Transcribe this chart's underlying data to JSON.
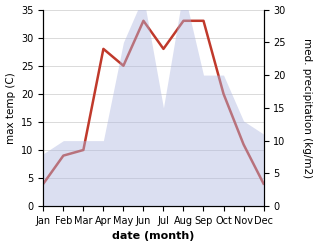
{
  "months": [
    "Jan",
    "Feb",
    "Mar",
    "Apr",
    "May",
    "Jun",
    "Jul",
    "Aug",
    "Sep",
    "Oct",
    "Nov",
    "Dec"
  ],
  "temperature": [
    4,
    9,
    10,
    28,
    25,
    33,
    28,
    33,
    33,
    20,
    11,
    4
  ],
  "precipitation": [
    8,
    10,
    10,
    10,
    25,
    32,
    15,
    33,
    20,
    20,
    13,
    11
  ],
  "temp_color": "#c0392b",
  "precip_color": "#b0b8e0",
  "background_color": "#ffffff",
  "ylabel_left": "max temp (C)",
  "ylabel_right": "med. precipitation (kg/m2)",
  "xlabel": "date (month)",
  "ylim_left": [
    0,
    35
  ],
  "ylim_right": [
    0,
    30
  ],
  "yticks_left": [
    0,
    5,
    10,
    15,
    20,
    25,
    30,
    35
  ],
  "yticks_right": [
    0,
    5,
    10,
    15,
    20,
    25,
    30
  ],
  "temp_linewidth": 1.8,
  "label_fontsize": 7.5,
  "tick_fontsize": 7,
  "xlabel_fontsize": 8
}
